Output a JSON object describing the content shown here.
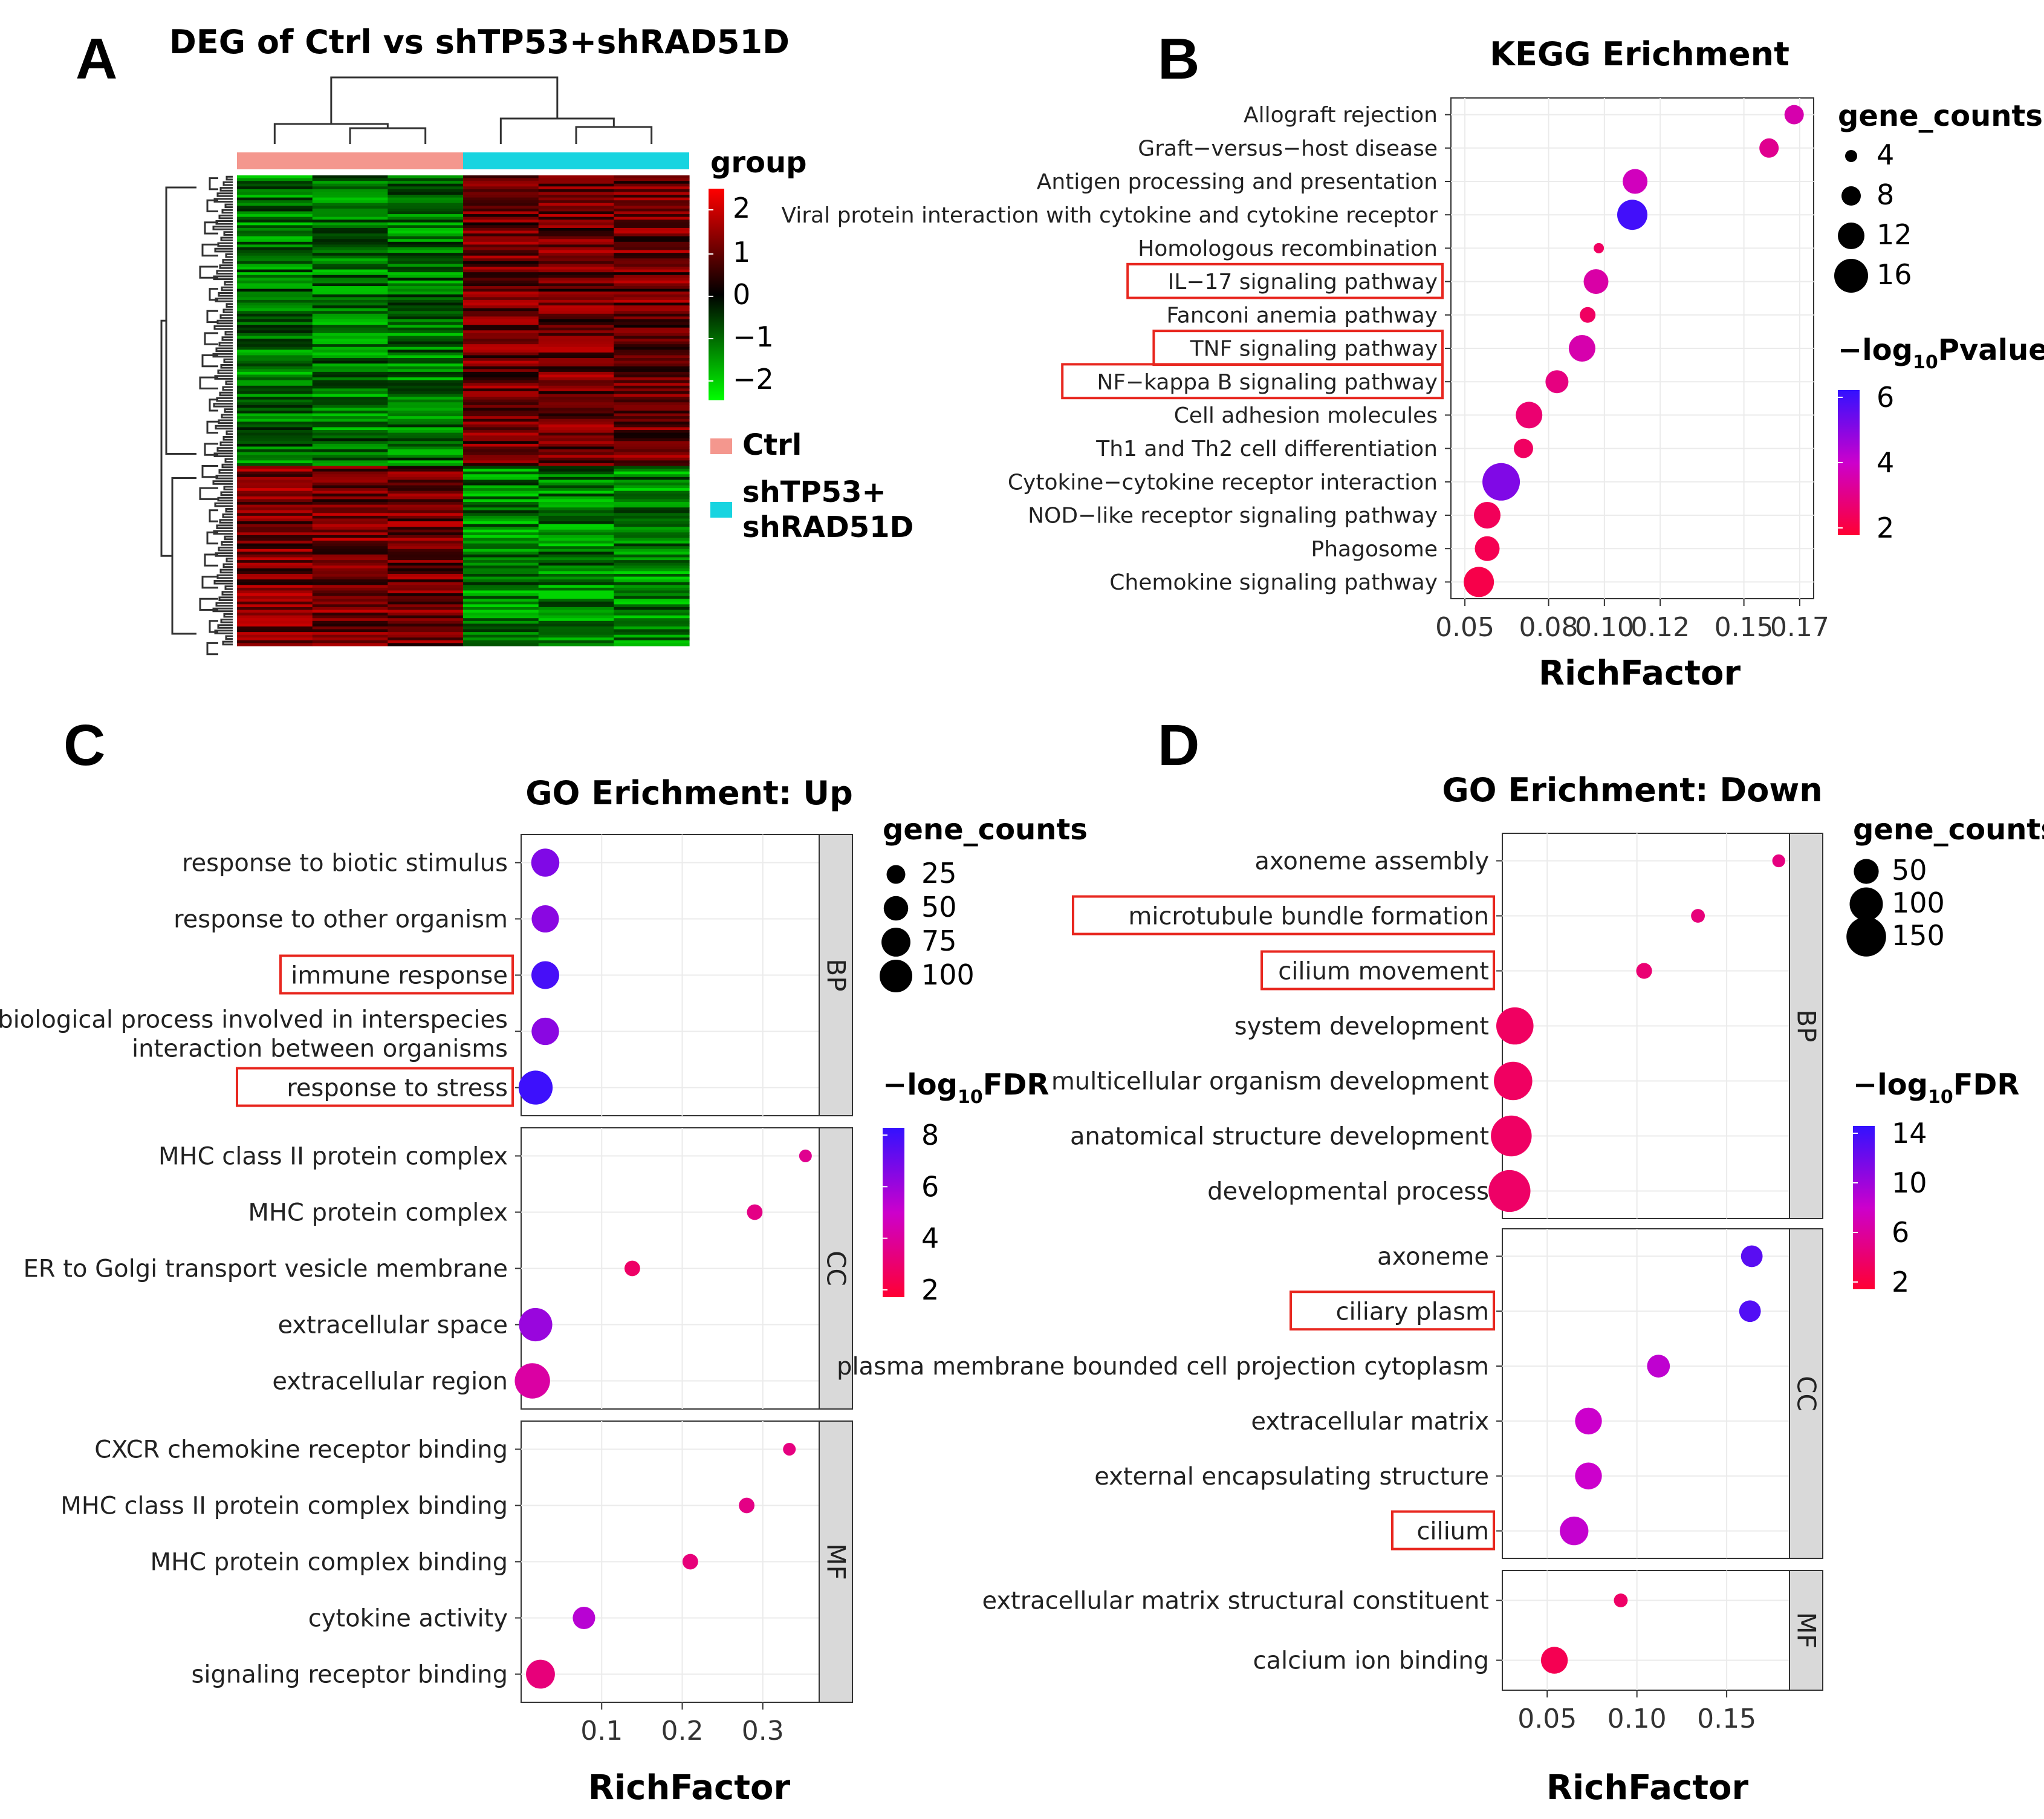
{
  "panels": {
    "A": "A",
    "B": "B",
    "C": "C",
    "D": "D"
  },
  "chart_data": [
    {
      "id": "A",
      "type": "heatmap",
      "title": "DEG of Ctrl vs shTP53+shRAD51D",
      "legend_title": "group",
      "color_scale": {
        "ticks": [
          "2",
          "1",
          "0",
          "−1",
          "−2"
        ],
        "colors": [
          "#ff0000",
          "#000000",
          "#00ff00"
        ]
      },
      "groups": [
        {
          "name": "Ctrl",
          "color": "#f4978e"
        },
        {
          "name_line1": "shTP53+",
          "name_line2": "shRAD51D",
          "color": "#18d4e0"
        }
      ],
      "columns": 6
    },
    {
      "id": "B",
      "type": "scatter",
      "title": "KEGG Erichment",
      "xlabel": "RichFactor",
      "xlim": [
        0.045,
        0.175
      ],
      "xticks": [
        0.05,
        0.08,
        0.1,
        0.12,
        0.15,
        0.17
      ],
      "xtick_labels": [
        "0.05",
        "0.08",
        "0.10",
        "0.12",
        "0.15",
        "0.17"
      ],
      "size_legend_title": "gene_counts",
      "size_legend": [
        "4",
        "8",
        "12",
        "16"
      ],
      "color_legend_title": "−log",
      "color_legend_sub": "10",
      "color_legend_suffix": "Pvalue",
      "color_ticks": [
        "6",
        "4",
        "2"
      ],
      "color_range": [
        2,
        6
      ],
      "points": [
        {
          "term": "Allograft rejection",
          "x": 0.168,
          "size": 8,
          "color": 3.6,
          "boxed": false
        },
        {
          "term": "Graft−versus−host disease",
          "x": 0.159,
          "size": 8,
          "color": 3.2,
          "boxed": false
        },
        {
          "term": "Antigen processing and presentation",
          "x": 0.111,
          "size": 11,
          "color": 3.8,
          "boxed": false
        },
        {
          "term": "Viral protein interaction with cytokine and cytokine receptor",
          "x": 0.11,
          "size": 14,
          "color": 5.8,
          "boxed": false
        },
        {
          "term": "Homologous recombination",
          "x": 0.098,
          "size": 3,
          "color": 2.6,
          "boxed": false
        },
        {
          "term": "IL−17 signaling pathway",
          "x": 0.097,
          "size": 11,
          "color": 3.5,
          "boxed": true
        },
        {
          "term": "Fanconi anemia pathway",
          "x": 0.094,
          "size": 6,
          "color": 2.6,
          "boxed": false
        },
        {
          "term": "TNF signaling pathway",
          "x": 0.092,
          "size": 12,
          "color": 3.6,
          "boxed": true
        },
        {
          "term": "NF−kappa B signaling pathway",
          "x": 0.083,
          "size": 10,
          "color": 3.0,
          "boxed": true
        },
        {
          "term": "Cell adhesion molecules",
          "x": 0.073,
          "size": 12,
          "color": 2.8,
          "boxed": false
        },
        {
          "term": "Th1 and Th2 cell differentiation",
          "x": 0.071,
          "size": 8,
          "color": 2.6,
          "boxed": false
        },
        {
          "term": "Cytokine−cytokine receptor interaction",
          "x": 0.063,
          "size": 18,
          "color": 5.0,
          "boxed": false
        },
        {
          "term": "NOD−like receptor signaling pathway",
          "x": 0.058,
          "size": 12,
          "color": 2.5,
          "boxed": false
        },
        {
          "term": "Phagosome",
          "x": 0.058,
          "size": 11,
          "color": 2.4,
          "boxed": false
        },
        {
          "term": "Chemokine signaling pathway",
          "x": 0.055,
          "size": 14,
          "color": 2.3,
          "boxed": false
        }
      ]
    },
    {
      "id": "C",
      "type": "scatter",
      "title": "GO Erichment: Up",
      "xlabel": "RichFactor",
      "xlim": [
        0.0,
        0.37
      ],
      "xticks": [
        0.1,
        0.2,
        0.3
      ],
      "xtick_labels": [
        "0.1",
        "0.2",
        "0.3"
      ],
      "size_legend_title": "gene_counts",
      "size_legend": [
        "25",
        "50",
        "75",
        "100"
      ],
      "color_legend_title": "−log",
      "color_legend_sub": "10",
      "color_legend_suffix": "FDR",
      "color_ticks": [
        "8",
        "6",
        "4",
        "2"
      ],
      "color_range": [
        2,
        8
      ],
      "facets": [
        {
          "strip": "BP",
          "points": [
            {
              "term": "response to biotic stimulus",
              "x": 0.03,
              "size": 70,
              "color": 6.5,
              "boxed": false
            },
            {
              "term": "response to other organism",
              "x": 0.03,
              "size": 65,
              "color": 6.3,
              "boxed": false
            },
            {
              "term": "immune response",
              "x": 0.03,
              "size": 68,
              "color": 7.6,
              "boxed": true
            },
            {
              "term_line1": "biological process involved in interspecies",
              "term": "interaction between organisms",
              "x": 0.03,
              "size": 66,
              "color": 6.3,
              "boxed": false
            },
            {
              "term": "response to stress",
              "x": 0.018,
              "size": 110,
              "color": 7.8,
              "boxed": true
            }
          ]
        },
        {
          "strip": "CC",
          "points": [
            {
              "term": "MHC class II protein complex",
              "x": 0.353,
              "size": 8,
              "color": 3.8,
              "boxed": false
            },
            {
              "term": "MHC protein complex",
              "x": 0.29,
              "size": 15,
              "color": 3.6,
              "boxed": false
            },
            {
              "term": "ER to Golgi transport vesicle membrane",
              "x": 0.138,
              "size": 15,
              "color": 3.0,
              "boxed": false
            },
            {
              "term": "extracellular space",
              "x": 0.018,
              "size": 105,
              "color": 6.0,
              "boxed": false
            },
            {
              "term": "extracellular region",
              "x": 0.014,
              "size": 120,
              "color": 4.2,
              "boxed": false
            }
          ]
        },
        {
          "strip": "MF",
          "points": [
            {
              "term": "CXCR chemokine receptor binding",
              "x": 0.333,
              "size": 8,
              "color": 3.5,
              "boxed": false
            },
            {
              "term": "MHC class II protein complex binding",
              "x": 0.28,
              "size": 15,
              "color": 3.6,
              "boxed": false
            },
            {
              "term": "MHC protein complex binding",
              "x": 0.21,
              "size": 15,
              "color": 3.4,
              "boxed": false
            },
            {
              "term": "cytokine activity",
              "x": 0.078,
              "size": 40,
              "color": 5.4,
              "boxed": false
            },
            {
              "term": "signaling receptor binding",
              "x": 0.024,
              "size": 75,
              "color": 3.4,
              "boxed": false
            }
          ]
        }
      ]
    },
    {
      "id": "D",
      "type": "scatter",
      "title": "GO Erichment: Down",
      "xlabel": "RichFactor",
      "xlim": [
        0.025,
        0.185
      ],
      "xticks": [
        0.05,
        0.1,
        0.15
      ],
      "xtick_labels": [
        "0.05",
        "0.10",
        "0.15"
      ],
      "size_legend_title": "gene_counts",
      "size_legend": [
        "50",
        "100",
        "150"
      ],
      "color_legend_title": "−log",
      "color_legend_sub": "10",
      "color_legend_suffix": "FDR",
      "color_ticks": [
        "14",
        "10",
        "6",
        "2"
      ],
      "color_range": [
        2,
        14
      ],
      "facets": [
        {
          "strip": "BP",
          "points": [
            {
              "term": "axoneme assembly",
              "x": 0.179,
              "size": 8,
              "color": 5.0,
              "boxed": false
            },
            {
              "term": "microtubule bundle formation",
              "x": 0.134,
              "size": 10,
              "color": 4.8,
              "boxed": true
            },
            {
              "term": "cilium movement",
              "x": 0.104,
              "size": 15,
              "color": 4.5,
              "boxed": true
            },
            {
              "term": "system development",
              "x": 0.032,
              "size": 130,
              "color": 3.8,
              "boxed": false
            },
            {
              "term": "multicellular organism development",
              "x": 0.031,
              "size": 140,
              "color": 3.8,
              "boxed": false
            },
            {
              "term": "anatomical structure development",
              "x": 0.03,
              "size": 160,
              "color": 3.9,
              "boxed": false
            },
            {
              "term": "developmental process",
              "x": 0.029,
              "size": 170,
              "color": 4.0,
              "boxed": false
            }
          ]
        },
        {
          "strip": "CC",
          "points": [
            {
              "term": "axoneme",
              "x": 0.164,
              "size": 35,
              "color": 12.5,
              "boxed": false
            },
            {
              "term": "ciliary plasm",
              "x": 0.163,
              "size": 35,
              "color": 12.8,
              "boxed": true
            },
            {
              "term": "plasma membrane bounded cell projection cytoplasm",
              "x": 0.112,
              "size": 40,
              "color": 8.5,
              "boxed": false
            },
            {
              "term": "extracellular matrix",
              "x": 0.073,
              "size": 60,
              "color": 8.0,
              "boxed": false
            },
            {
              "term": "external encapsulating structure",
              "x": 0.073,
              "size": 60,
              "color": 8.0,
              "boxed": false
            },
            {
              "term": "cilium",
              "x": 0.065,
              "size": 70,
              "color": 8.3,
              "boxed": true
            }
          ]
        },
        {
          "strip": "MF",
          "points": [
            {
              "term": "extracellular matrix structural constituent",
              "x": 0.091,
              "size": 10,
              "color": 4.0,
              "boxed": false
            },
            {
              "term": "calcium ion binding",
              "x": 0.054,
              "size": 60,
              "color": 3.2,
              "boxed": false
            }
          ]
        }
      ]
    }
  ],
  "colors": {
    "low": "#ff0033",
    "mid": "#cc00cc",
    "high": "#3311ff",
    "box_red": "#e8271f",
    "strip_fill": "#d9d9d9",
    "plot_bg": "#ffffff",
    "grid": "#ebebeb"
  }
}
